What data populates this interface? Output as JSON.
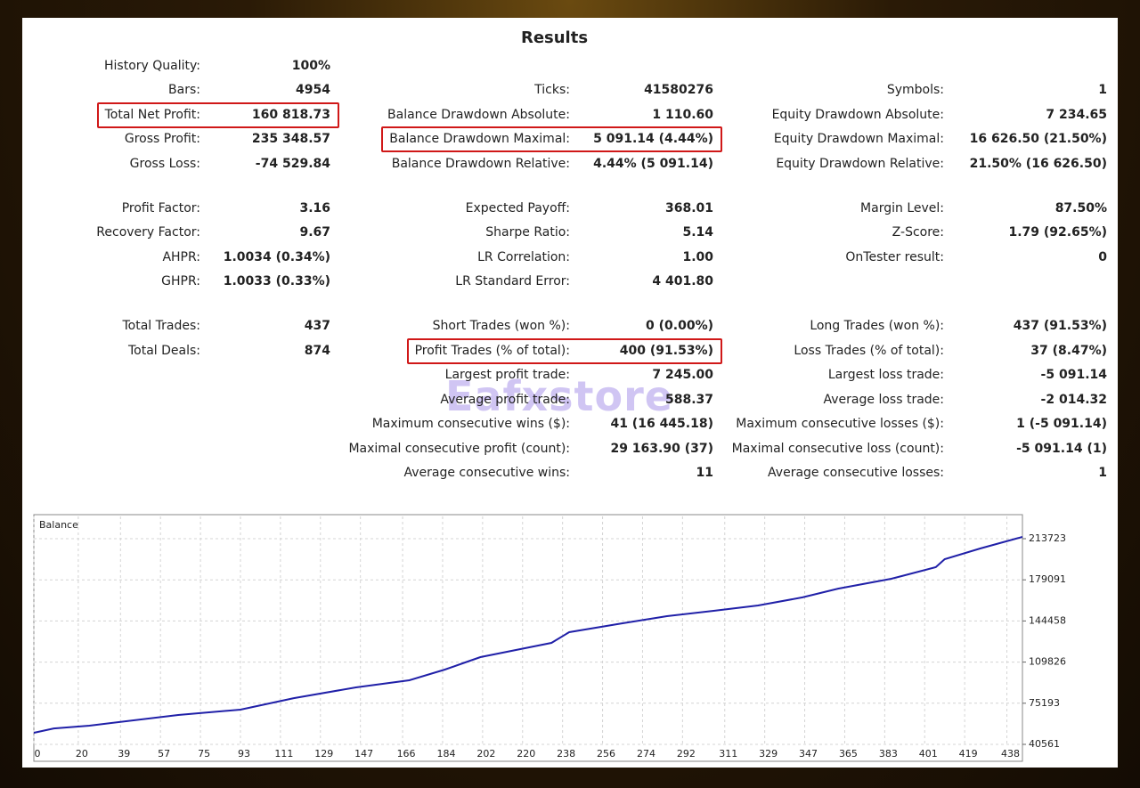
{
  "results": {
    "title": "Results",
    "rows": [
      [
        {
          "label": "History Quality:",
          "value": "100%"
        },
        null,
        null
      ],
      [
        {
          "label": "Bars:",
          "value": "4954"
        },
        {
          "label": "Ticks:",
          "value": "41580276"
        },
        {
          "label": "Symbols:",
          "value": "1"
        }
      ],
      [
        {
          "label": "Total Net Profit:",
          "value": "160 818.73"
        },
        {
          "label": "Balance Drawdown Absolute:",
          "value": "1 110.60"
        },
        {
          "label": "Equity Drawdown Absolute:",
          "value": "7 234.65"
        }
      ],
      [
        {
          "label": "Gross Profit:",
          "value": "235 348.57"
        },
        {
          "label": "Balance Drawdown Maximal:",
          "value": "5 091.14 (4.44%)"
        },
        {
          "label": "Equity Drawdown Maximal:",
          "value": "16 626.50 (21.50%)"
        }
      ],
      [
        {
          "label": "Gross Loss:",
          "value": "-74 529.84"
        },
        {
          "label": "Balance Drawdown Relative:",
          "value": "4.44% (5 091.14)"
        },
        {
          "label": "Equity Drawdown Relative:",
          "value": "21.50% (16 626.50)"
        }
      ],
      [
        {
          "label": "Profit Factor:",
          "value": "3.16"
        },
        {
          "label": "Expected Payoff:",
          "value": "368.01"
        },
        {
          "label": "Margin Level:",
          "value": "87.50%"
        }
      ],
      [
        {
          "label": "Recovery Factor:",
          "value": "9.67"
        },
        {
          "label": "Sharpe Ratio:",
          "value": "5.14"
        },
        {
          "label": "Z-Score:",
          "value": "1.79 (92.65%)"
        }
      ],
      [
        {
          "label": "AHPR:",
          "value": "1.0034 (0.34%)"
        },
        {
          "label": "LR Correlation:",
          "value": "1.00"
        },
        {
          "label": "OnTester result:",
          "value": "0"
        }
      ],
      [
        {
          "label": "GHPR:",
          "value": "1.0033 (0.33%)"
        },
        {
          "label": "LR Standard Error:",
          "value": "4 401.80"
        },
        null
      ],
      [
        {
          "label": "Total Trades:",
          "value": "437"
        },
        {
          "label": "Short Trades (won %):",
          "value": "0 (0.00%)"
        },
        {
          "label": "Long Trades (won %):",
          "value": "437 (91.53%)"
        }
      ],
      [
        {
          "label": "Total Deals:",
          "value": "874"
        },
        {
          "label": "Profit Trades (% of total):",
          "value": "400 (91.53%)"
        },
        {
          "label": "Loss Trades (% of total):",
          "value": "37 (8.47%)"
        }
      ],
      [
        null,
        {
          "label": "Largest profit trade:",
          "value": "7 245.00"
        },
        {
          "label": "Largest loss trade:",
          "value": "-5 091.14"
        }
      ],
      [
        null,
        {
          "label": "Average profit trade:",
          "value": "588.37"
        },
        {
          "label": "Average loss trade:",
          "value": "-2 014.32"
        }
      ],
      [
        null,
        {
          "label": "Maximum consecutive wins ($):",
          "value": "41 (16 445.18)"
        },
        {
          "label": "Maximum consecutive losses ($):",
          "value": "1 (-5 091.14)"
        }
      ],
      [
        null,
        {
          "label": "Maximal consecutive profit (count):",
          "value": "29 163.90 (37)"
        },
        {
          "label": "Maximal consecutive loss (count):",
          "value": "-5 091.14 (1)"
        }
      ],
      [
        null,
        {
          "label": "Average consecutive wins:",
          "value": "11"
        },
        {
          "label": "Average consecutive losses:",
          "value": "1"
        }
      ]
    ]
  },
  "watermark": "Eafxstore",
  "chart_data": {
    "type": "line",
    "title": "Balance",
    "x": [
      0,
      9,
      25,
      65,
      93,
      117,
      145,
      169,
      185,
      193,
      201,
      217,
      233,
      241,
      265,
      285,
      306,
      326,
      346,
      362,
      386,
      406,
      410,
      426,
      445
    ],
    "series": [
      {
        "name": "Balance",
        "color": "#2020a8",
        "values": [
          50300,
          54000,
          56300,
          65300,
          69800,
          79500,
          88500,
          94500,
          103500,
          108800,
          114000,
          120000,
          126000,
          135000,
          142500,
          148500,
          153000,
          157500,
          164300,
          171700,
          180000,
          189700,
          196500,
          205500,
          215200
        ]
      }
    ],
    "xlim": [
      0,
      445
    ],
    "xticks": [
      0,
      20,
      39,
      57,
      75,
      93,
      111,
      129,
      147,
      166,
      184,
      202,
      220,
      238,
      256,
      274,
      292,
      311,
      329,
      347,
      365,
      383,
      401,
      419,
      438
    ],
    "ylim": [
      39062,
      224967
    ],
    "yticks": [
      40561,
      75193,
      109826,
      144458,
      179091,
      213723
    ],
    "grid": true
  }
}
